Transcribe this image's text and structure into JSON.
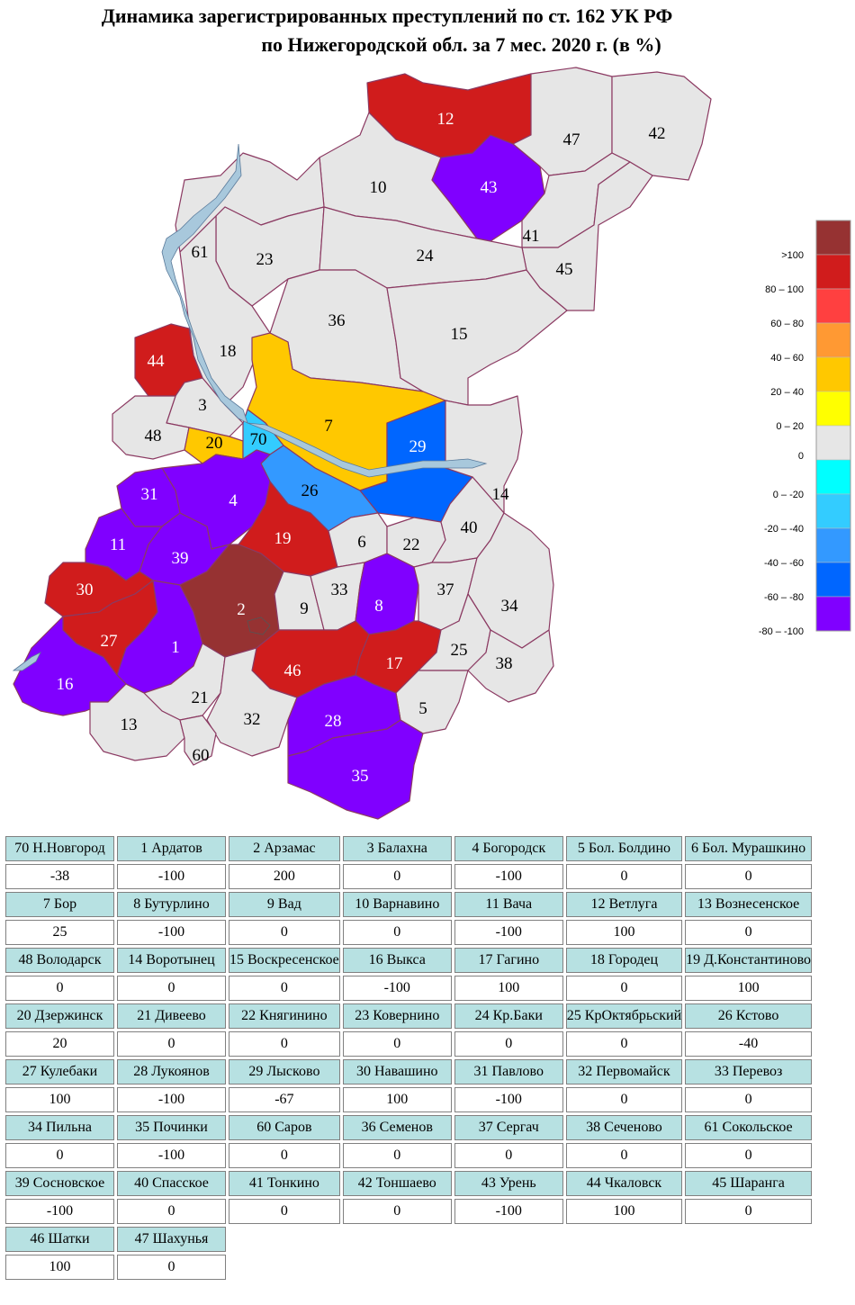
{
  "title": {
    "line1": "Динамика зарегистрированных преступлений по ст. 162 УК РФ",
    "line2": "по Нижегородской обл. за 7 мес. 2020 г. (в %)"
  },
  "colors": {
    "gt100": "#963232",
    "r80_100": "#d01c1c",
    "r60_80": "#ff4040",
    "r40_60": "#ff9933",
    "r20_40": "#ffc800",
    "r0_20": "#ffff00",
    "zero": "#e6e6e6",
    "n0_20": "#00ffff",
    "n20_40": "#33ccff",
    "n40_60": "#3399ff",
    "n60_80": "#0066ff",
    "n80_100": "#0000ff",
    "n100": "#8000ff",
    "border": "#8b3a62",
    "water": "#a8c8dc",
    "cell_header": "#b7e1e2"
  },
  "legend": [
    {
      "label": ">100",
      "color": "#963232"
    },
    {
      "label": "80 – 100",
      "color": "#d01c1c"
    },
    {
      "label": "60 – 80",
      "color": "#ff4040"
    },
    {
      "label": "40 – 60",
      "color": "#ff9933"
    },
    {
      "label": "20 – 40",
      "color": "#ffc800"
    },
    {
      "label": "0 – 20",
      "color": "#ffff00"
    },
    {
      "label": "0",
      "color": "#e6e6e6"
    },
    {
      "label": "0 – -20",
      "color": "#00ffff"
    },
    {
      "label": "-20 – -40",
      "color": "#33ccff"
    },
    {
      "label": "-40 – -60",
      "color": "#3399ff"
    },
    {
      "label": "-60 – -80",
      "color": "#0066ff"
    },
    {
      "label": "-80 – -100",
      "color": "#8000ff"
    }
  ],
  "regions": [
    {
      "id": "70",
      "name": "70 Н.Новгород",
      "value": "-38"
    },
    {
      "id": "1",
      "name": "1 Ардатов",
      "value": "-100"
    },
    {
      "id": "2",
      "name": "2 Арзамас",
      "value": "200"
    },
    {
      "id": "3",
      "name": "3 Балахна",
      "value": "0"
    },
    {
      "id": "4",
      "name": "4 Богородск",
      "value": "-100"
    },
    {
      "id": "5",
      "name": "5 Бол. Болдино",
      "value": "0"
    },
    {
      "id": "6",
      "name": "6 Бол. Мурашкино",
      "value": "0"
    },
    {
      "id": "7",
      "name": "7 Бор",
      "value": "25"
    },
    {
      "id": "8",
      "name": "8 Бутурлино",
      "value": "-100"
    },
    {
      "id": "9",
      "name": "9 Вад",
      "value": "0"
    },
    {
      "id": "10",
      "name": "10 Варнавино",
      "value": "0"
    },
    {
      "id": "11",
      "name": "11 Вача",
      "value": "-100"
    },
    {
      "id": "12",
      "name": "12 Ветлуга",
      "value": "100"
    },
    {
      "id": "13",
      "name": "13 Вознесенское",
      "value": "0"
    },
    {
      "id": "48",
      "name": "48 Володарск",
      "value": "0"
    },
    {
      "id": "14",
      "name": "14 Воротынец",
      "value": "0"
    },
    {
      "id": "15",
      "name": "15 Воскресенское",
      "value": "0"
    },
    {
      "id": "16",
      "name": "16 Выкса",
      "value": "-100"
    },
    {
      "id": "17",
      "name": "17 Гагино",
      "value": "100"
    },
    {
      "id": "18",
      "name": "18 Городец",
      "value": "0"
    },
    {
      "id": "19",
      "name": "19 Д.Константиново",
      "value": "100"
    },
    {
      "id": "20",
      "name": "20 Дзержинск",
      "value": "20"
    },
    {
      "id": "21",
      "name": "21 Дивеево",
      "value": "0"
    },
    {
      "id": "22",
      "name": "22 Княгинино",
      "value": "0"
    },
    {
      "id": "23",
      "name": "23 Ковернино",
      "value": "0"
    },
    {
      "id": "24",
      "name": "24 Кр.Баки",
      "value": "0"
    },
    {
      "id": "25",
      "name": "25 КрОктябрьский",
      "value": "0"
    },
    {
      "id": "26",
      "name": "26 Кстово",
      "value": "-40"
    },
    {
      "id": "27",
      "name": "27 Кулебаки",
      "value": "100"
    },
    {
      "id": "28",
      "name": "28 Лукоянов",
      "value": "-100"
    },
    {
      "id": "29",
      "name": "29 Лысково",
      "value": "-67"
    },
    {
      "id": "30",
      "name": "30 Навашино",
      "value": "100"
    },
    {
      "id": "31",
      "name": "31 Павлово",
      "value": "-100"
    },
    {
      "id": "32",
      "name": "32 Первомайск",
      "value": "0"
    },
    {
      "id": "33",
      "name": "33 Перевоз",
      "value": "0"
    },
    {
      "id": "34",
      "name": "34 Пильна",
      "value": "0"
    },
    {
      "id": "35",
      "name": "35 Починки",
      "value": "-100"
    },
    {
      "id": "60",
      "name": "60 Саров",
      "value": "0"
    },
    {
      "id": "36",
      "name": "36 Семенов",
      "value": "0"
    },
    {
      "id": "37",
      "name": "37 Сергач",
      "value": "0"
    },
    {
      "id": "38",
      "name": "38 Сеченово",
      "value": "0"
    },
    {
      "id": "61",
      "name": "61 Сокольское",
      "value": "0"
    },
    {
      "id": "39",
      "name": "39 Сосновское",
      "value": "-100"
    },
    {
      "id": "40",
      "name": "40 Спасское",
      "value": "0"
    },
    {
      "id": "41",
      "name": "41 Тонкино",
      "value": "0"
    },
    {
      "id": "42",
      "name": "42 Тоншаево",
      "value": "0"
    },
    {
      "id": "43",
      "name": "43 Урень",
      "value": "-100"
    },
    {
      "id": "44",
      "name": "44 Чкаловск",
      "value": "100"
    },
    {
      "id": "45",
      "name": "45 Шаранга",
      "value": "0"
    },
    {
      "id": "46",
      "name": "46 Шатки",
      "value": "100"
    },
    {
      "id": "47",
      "name": "47 Шахунья",
      "value": "0"
    }
  ]
}
